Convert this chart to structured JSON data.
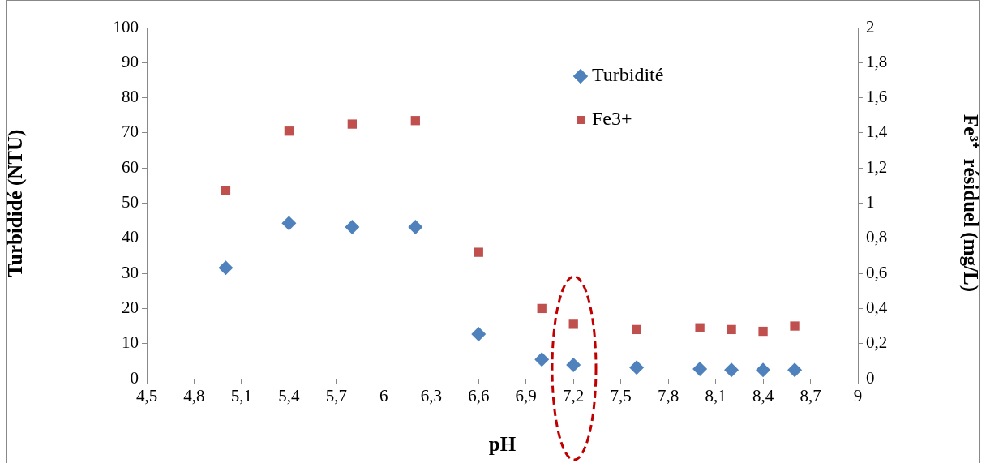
{
  "chart_data": {
    "type": "scatter",
    "xlabel": "pH",
    "ylabel": "Turbididé (NTU)",
    "y2label": "Fe³⁺  résiduel (mg/L)",
    "legend": "top right",
    "grid": false,
    "xlim": [
      4.5,
      9
    ],
    "xticks": [
      {
        "value": 4.5,
        "label": "4,5"
      },
      {
        "value": 4.8,
        "label": "4,8"
      },
      {
        "value": 5.1,
        "label": "5,1"
      },
      {
        "value": 5.4,
        "label": "5,4"
      },
      {
        "value": 5.7,
        "label": "5,7"
      },
      6,
      {
        "value": 6.3,
        "label": "6,3"
      },
      {
        "value": 6.6,
        "label": "6,6"
      },
      {
        "value": 6.9,
        "label": "6,9"
      },
      {
        "value": 7.2,
        "label": "7,2"
      },
      {
        "value": 7.5,
        "label": "7,5"
      },
      {
        "value": 7.8,
        "label": "7,8"
      },
      {
        "value": 8.1,
        "label": "8,1"
      },
      {
        "value": 8.4,
        "label": "8,4"
      },
      {
        "value": 8.7,
        "label": "8,7"
      },
      9
    ],
    "ylim": [
      0,
      100
    ],
    "yticks": [
      0,
      10,
      20,
      30,
      40,
      50,
      60,
      70,
      80,
      90,
      100
    ],
    "y2lim": [
      0,
      2
    ],
    "y2ticks": [
      0,
      {
        "value": 0.2,
        "label": "0,2"
      },
      {
        "value": 0.4,
        "label": "0,4"
      },
      {
        "value": 0.6,
        "label": "0,6"
      },
      {
        "value": 0.8,
        "label": "0,8"
      },
      1,
      {
        "value": 1.2,
        "label": "1,2"
      },
      {
        "value": 1.4,
        "label": "1,4"
      },
      {
        "value": 1.6,
        "label": "1,6"
      },
      {
        "value": 1.8,
        "label": "1,8"
      },
      2
    ],
    "x": [
      5.0,
      5.4,
      5.8,
      6.2,
      6.6,
      7.0,
      7.2,
      7.6,
      8.0,
      8.2,
      8.4,
      8.6
    ],
    "series": [
      {
        "name": "Turbidité",
        "color": "#4f81bd",
        "marker": "diamond",
        "values": [
          31.6,
          44.3,
          43.2,
          43.2,
          12.7,
          5.5,
          3.9,
          3.2,
          2.8,
          2.5,
          2.5,
          2.5
        ]
      },
      {
        "name": "Fe3+",
        "color": "#c0504d",
        "marker": "square",
        "axis": "y2",
        "values": [
          1.07,
          1.41,
          1.45,
          1.47,
          0.72,
          0.4,
          0.31,
          0.28,
          0.29,
          0.28,
          0.27,
          0.3
        ]
      }
    ]
  }
}
